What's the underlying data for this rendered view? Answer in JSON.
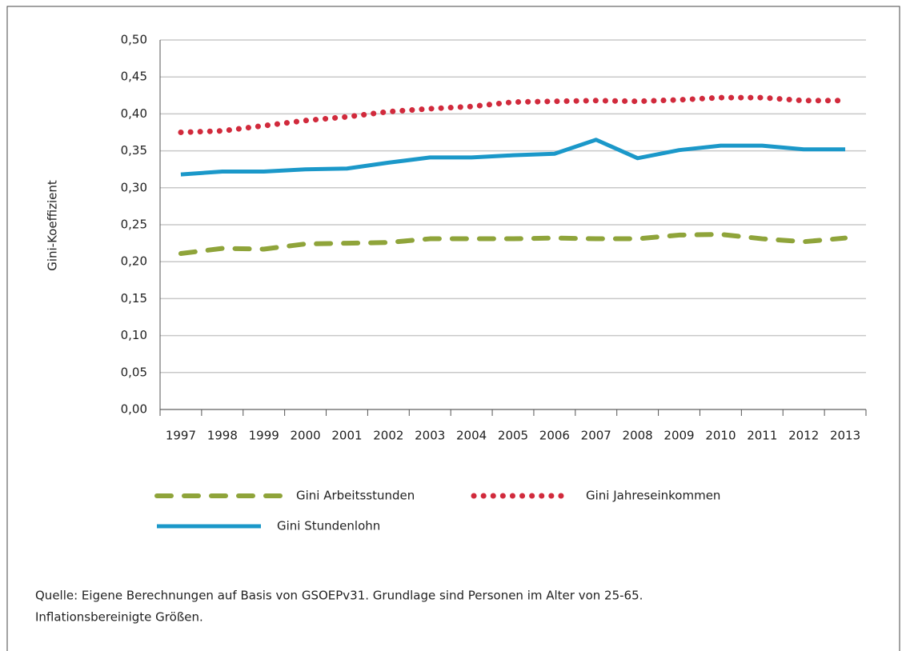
{
  "chart_data": {
    "type": "line",
    "y_label": "Gini-Koeffizient",
    "categories": [
      "1997",
      "1998",
      "1999",
      "2000",
      "2001",
      "2002",
      "2003",
      "2004",
      "2005",
      "2006",
      "2007",
      "2008",
      "2009",
      "2010",
      "2011",
      "2012",
      "2013"
    ],
    "series": [
      {
        "name": "Gini Arbeitsstunden",
        "color": "#8fa43a",
        "dash": "dashed",
        "values": [
          0.211,
          0.218,
          0.217,
          0.224,
          0.225,
          0.226,
          0.231,
          0.231,
          0.231,
          0.232,
          0.231,
          0.231,
          0.236,
          0.237,
          0.231,
          0.227,
          0.232
        ]
      },
      {
        "name": "Gini Jahreseinkommen",
        "color": "#d12a3c",
        "dash": "dotted",
        "values": [
          0.375,
          0.377,
          0.384,
          0.391,
          0.396,
          0.403,
          0.407,
          0.41,
          0.416,
          0.417,
          0.418,
          0.417,
          0.419,
          0.422,
          0.422,
          0.418,
          0.418
        ]
      },
      {
        "name": "Gini Stundenlohn",
        "color": "#1b98c9",
        "dash": "solid",
        "values": [
          0.318,
          0.322,
          0.322,
          0.325,
          0.326,
          0.334,
          0.341,
          0.341,
          0.344,
          0.346,
          0.365,
          0.34,
          0.351,
          0.357,
          0.357,
          0.352,
          0.352
        ]
      }
    ],
    "ylim": [
      0,
      0.5
    ],
    "yticks": [
      {
        "value": 0,
        "label": "0,00"
      },
      {
        "value": 0.05,
        "label": "0,05"
      },
      {
        "value": 0.1,
        "label": "0,10"
      },
      {
        "value": 0.15,
        "label": "0,15"
      },
      {
        "value": 0.2,
        "label": "0,20"
      },
      {
        "value": 0.25,
        "label": "0,25"
      },
      {
        "value": 0.3,
        "label": "0,30"
      },
      {
        "value": 0.35,
        "label": "0,35"
      },
      {
        "value": 0.4,
        "label": "0,40"
      },
      {
        "value": 0.45,
        "label": "0,45"
      },
      {
        "value": 0.5,
        "label": "0,50"
      }
    ],
    "grid": true,
    "source": [
      "Quelle: Eigene Berechnungen auf Basis von GSOEPv31. Grundlage sind Personen im Alter von 25-65.",
      "Inflationsbereinigte Größen."
    ]
  }
}
